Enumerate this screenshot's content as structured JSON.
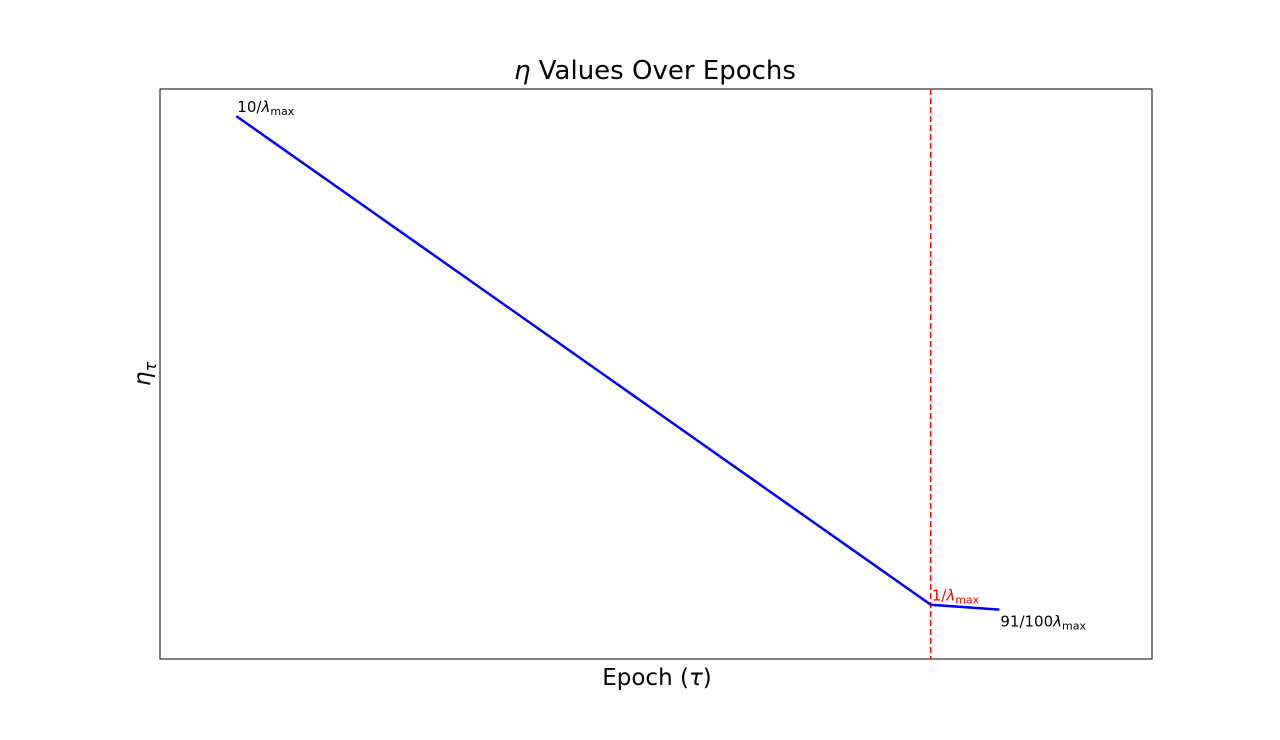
{
  "chart_data": {
    "type": "line",
    "title": {
      "symbol": "η",
      "text": "Values Over Epochs"
    },
    "xlabel": {
      "text": "Epoch (",
      "symbol": "τ",
      "close": ")"
    },
    "ylabel": {
      "symbol": "η",
      "subscript": "τ"
    },
    "x_ticks": "none",
    "y_ticks": "none",
    "grid": false,
    "xlim": [
      -10,
      120
    ],
    "ylim": [
      0.0,
      10.5
    ],
    "series": [
      {
        "color": "#0000ff",
        "x": [
          0,
          91,
          100
        ],
        "y": [
          10.0,
          1.0,
          0.91
        ]
      }
    ],
    "vline": {
      "x": 91,
      "color": "#ff0000",
      "style": "dashed"
    },
    "annotations": [
      {
        "x": 0,
        "y": 10.0,
        "prefix": "10/",
        "symbol": "λ",
        "subscript": "max",
        "color": "#000000"
      },
      {
        "x": 91,
        "y": 1.0,
        "prefix": "1/",
        "symbol": "λ",
        "subscript": "max",
        "color": "#ff0000"
      },
      {
        "x": 100,
        "y": 0.91,
        "prefix": "91/100",
        "symbol": "λ",
        "subscript": "max",
        "color": "#000000"
      }
    ]
  }
}
